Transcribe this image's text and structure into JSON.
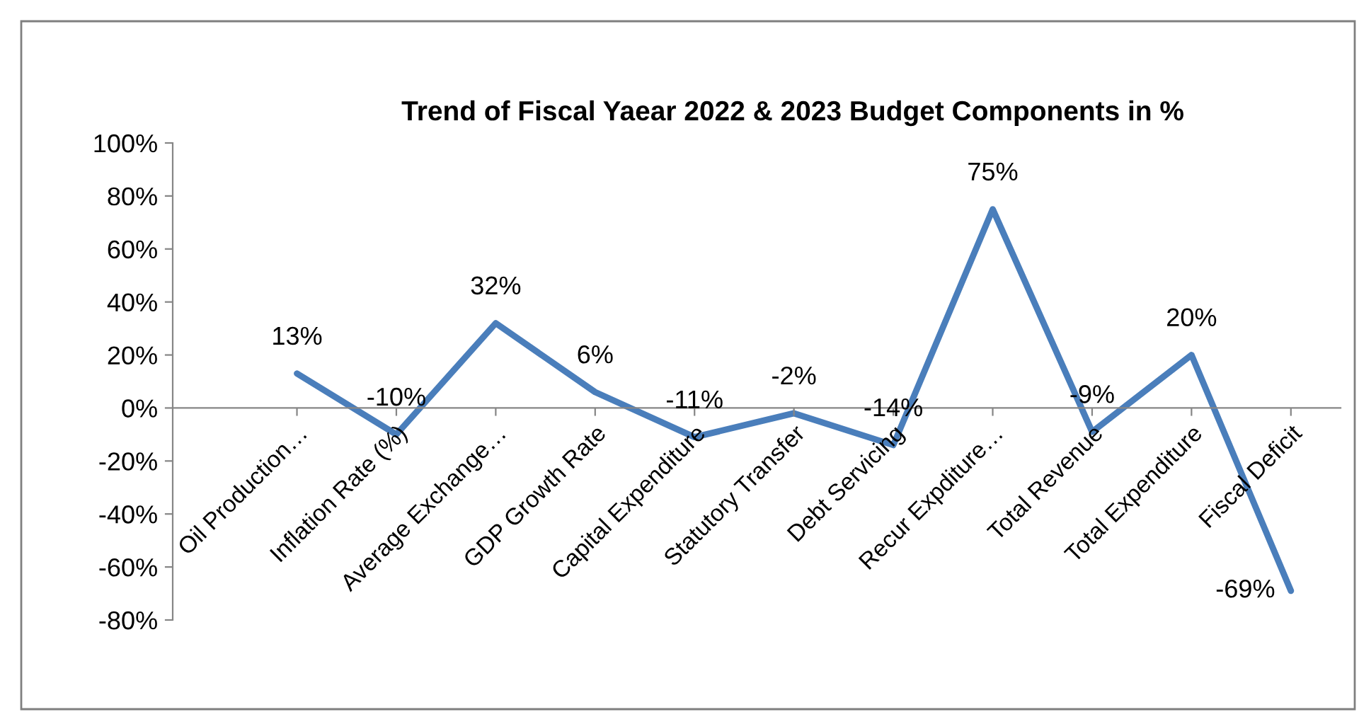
{
  "chart_data": {
    "type": "line",
    "title": "Trend of Fiscal Yaear 2022 & 2023 Budget Components in %",
    "categories": [
      "Oil Production…",
      "Inflation Rate (%)",
      "Average Exchange…",
      "GDP Growth Rate",
      "Capital Expenditure",
      "Statutory Transfer",
      "Debt Servicing",
      "Recur Expditure…",
      "Total Revenue",
      "Total Expenditure",
      "Fiscal Deficit"
    ],
    "values": [
      13,
      -10,
      32,
      6,
      -11,
      -2,
      -14,
      75,
      -9,
      20,
      -69
    ],
    "value_labels": [
      "13%",
      "-10%",
      "32%",
      "6%",
      "-11%",
      "-2%",
      "-14%",
      "75%",
      "-9%",
      "20%",
      "-69%"
    ],
    "color": "#4a7ebb",
    "ylim": [
      -80,
      100
    ],
    "yticks": [
      {
        "value": -80,
        "label": "-80%"
      },
      {
        "value": -60,
        "label": "-60%"
      },
      {
        "value": -40,
        "label": "-40%"
      },
      {
        "value": -20,
        "label": "-20%"
      },
      {
        "value": 0,
        "label": "0%"
      },
      {
        "value": 20,
        "label": "20%"
      },
      {
        "value": 40,
        "label": "40%"
      },
      {
        "value": 60,
        "label": "60%"
      },
      {
        "value": 80,
        "label": "80%"
      },
      {
        "value": 100,
        "label": "100%"
      }
    ]
  }
}
